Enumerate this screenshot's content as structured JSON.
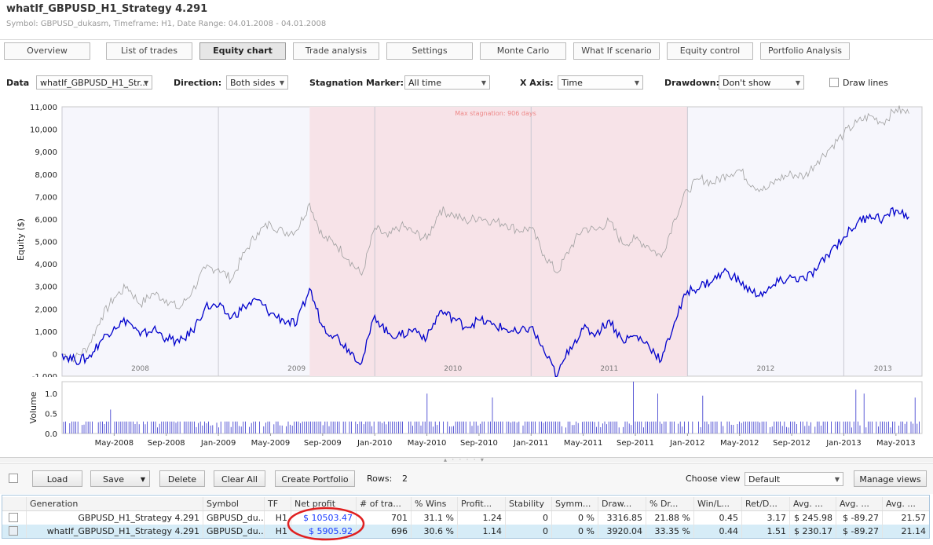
{
  "window": {
    "title": "whatIf_GBPUSD_H1_Strategy 4.291",
    "subtitle": "Symbol: GBPUSD_dukasm, Timeframe: H1, Date Range: 04.01.2008 - 04.01.2008"
  },
  "tabs": [
    "Overview",
    "List of trades",
    "Equity chart",
    "Trade analysis",
    "Settings",
    "Monte Carlo",
    "What If scenario",
    "Equity control",
    "Portfolio Analysis"
  ],
  "active_tab": "Equity chart",
  "controls": {
    "data_label": "Data",
    "data_value": "whatIf_GBPUSD_H1_Str...",
    "direction_label": "Direction:",
    "direction_value": "Both sides",
    "stagnation_label": "Stagnation Marker:",
    "stagnation_value": "All time",
    "xaxis_label": "X Axis:",
    "xaxis_value": "Time",
    "drawdown_label": "Drawdown:",
    "drawdown_value": "Don't show",
    "draw_lines_label": "Draw lines",
    "draw_lines_checked": false
  },
  "chart_data": [
    {
      "type": "line",
      "ylabel": "Equity ($)",
      "ylim": [
        -1000,
        11000
      ],
      "yticks": [
        "-1,000",
        "0",
        "1,000",
        "2,000",
        "3,000",
        "4,000",
        "5,000",
        "6,000",
        "7,000",
        "8,000",
        "9,000",
        "10,000",
        "11,000"
      ],
      "year_labels": [
        "2008",
        "2009",
        "2010",
        "2011",
        "2012",
        "2013"
      ],
      "stagnation_label": "Max stagnation: 906 days",
      "stagnation_range": [
        "Aug-2009",
        "Jan-2012"
      ],
      "series": [
        {
          "name": "GBPUSD_H1_Strategy 4.291",
          "color": "#a0a0a0",
          "points": [
            [
              "Jan-2008",
              0
            ],
            [
              "Feb-2008",
              -200
            ],
            [
              "Mar-2008",
              300
            ],
            [
              "Apr-2008",
              1600
            ],
            [
              "May-2008",
              2500
            ],
            [
              "Jun-2008",
              3000
            ],
            [
              "Jul-2008",
              2200
            ],
            [
              "Aug-2008",
              2700
            ],
            [
              "Sep-2008",
              2400
            ],
            [
              "Oct-2008",
              2000
            ],
            [
              "Nov-2008",
              2800
            ],
            [
              "Dec-2008",
              3800
            ],
            [
              "Jan-2009",
              3800
            ],
            [
              "Feb-2009",
              3300
            ],
            [
              "Mar-2009",
              4500
            ],
            [
              "Apr-2009",
              5400
            ],
            [
              "May-2009",
              5800
            ],
            [
              "Jun-2009",
              5400
            ],
            [
              "Jul-2009",
              5500
            ],
            [
              "Aug-2009",
              6700
            ],
            [
              "Sep-2009",
              5200
            ],
            [
              "Oct-2009",
              4900
            ],
            [
              "Nov-2009",
              4200
            ],
            [
              "Dec-2009",
              3500
            ],
            [
              "Jan-2010",
              5600
            ],
            [
              "Feb-2010",
              5200
            ],
            [
              "Mar-2010",
              5700
            ],
            [
              "Apr-2010",
              5400
            ],
            [
              "May-2010",
              5100
            ],
            [
              "Jun-2010",
              6400
            ],
            [
              "Jul-2010",
              6200
            ],
            [
              "Aug-2010",
              5900
            ],
            [
              "Sep-2010",
              6100
            ],
            [
              "Oct-2010",
              5900
            ],
            [
              "Nov-2010",
              5800
            ],
            [
              "Dec-2010",
              5500
            ],
            [
              "Jan-2011",
              5600
            ],
            [
              "Feb-2011",
              4400
            ],
            [
              "Mar-2011",
              3600
            ],
            [
              "Apr-2011",
              4700
            ],
            [
              "May-2011",
              5600
            ],
            [
              "Jun-2011",
              5500
            ],
            [
              "Jul-2011",
              5900
            ],
            [
              "Aug-2011",
              4900
            ],
            [
              "Sep-2011",
              5100
            ],
            [
              "Oct-2011",
              4800
            ],
            [
              "Nov-2011",
              4300
            ],
            [
              "Dec-2011",
              6000
            ],
            [
              "Jan-2012",
              7300
            ],
            [
              "Feb-2012",
              7800
            ],
            [
              "Mar-2012",
              7600
            ],
            [
              "Apr-2012",
              8000
            ],
            [
              "May-2012",
              8200
            ],
            [
              "Jun-2012",
              7500
            ],
            [
              "Jul-2012",
              7300
            ],
            [
              "Aug-2012",
              7800
            ],
            [
              "Sep-2012",
              8000
            ],
            [
              "Oct-2012",
              7900
            ],
            [
              "Nov-2012",
              8600
            ],
            [
              "Dec-2012",
              9200
            ],
            [
              "Jan-2013",
              9800
            ],
            [
              "Feb-2013",
              10300
            ],
            [
              "Mar-2013",
              10600
            ],
            [
              "Apr-2013",
              10300
            ],
            [
              "May-2013",
              10900
            ],
            [
              "Jun-2013",
              10700
            ]
          ]
        },
        {
          "name": "whatIf_GBPUSD_H1_Strategy 4.291",
          "color": "#0000cc",
          "points": [
            [
              "Jan-2008",
              0
            ],
            [
              "Feb-2008",
              -300
            ],
            [
              "Mar-2008",
              -200
            ],
            [
              "Apr-2008",
              600
            ],
            [
              "May-2008",
              1200
            ],
            [
              "Jun-2008",
              1500
            ],
            [
              "Jul-2008",
              800
            ],
            [
              "Aug-2008",
              1100
            ],
            [
              "Sep-2008",
              700
            ],
            [
              "Oct-2008",
              500
            ],
            [
              "Nov-2008",
              1000
            ],
            [
              "Dec-2008",
              2100
            ],
            [
              "Jan-2009",
              2100
            ],
            [
              "Feb-2009",
              1600
            ],
            [
              "Mar-2009",
              2100
            ],
            [
              "Apr-2009",
              2400
            ],
            [
              "May-2009",
              1800
            ],
            [
              "Jun-2009",
              1500
            ],
            [
              "Jul-2009",
              1300
            ],
            [
              "Aug-2009",
              2900
            ],
            [
              "Sep-2009",
              1200
            ],
            [
              "Oct-2009",
              800
            ],
            [
              "Nov-2009",
              200
            ],
            [
              "Dec-2009",
              -400
            ],
            [
              "Jan-2010",
              1700
            ],
            [
              "Feb-2010",
              900
            ],
            [
              "Mar-2010",
              800
            ],
            [
              "Apr-2010",
              1100
            ],
            [
              "May-2010",
              700
            ],
            [
              "Jun-2010",
              1900
            ],
            [
              "Jul-2010",
              1600
            ],
            [
              "Aug-2010",
              1200
            ],
            [
              "Sep-2010",
              1500
            ],
            [
              "Oct-2010",
              1300
            ],
            [
              "Nov-2010",
              1100
            ],
            [
              "Dec-2010",
              900
            ],
            [
              "Jan-2011",
              1200
            ],
            [
              "Feb-2011",
              100
            ],
            [
              "Mar-2011",
              -1000
            ],
            [
              "Apr-2011",
              300
            ],
            [
              "May-2011",
              1100
            ],
            [
              "Jun-2011",
              900
            ],
            [
              "Jul-2011",
              1500
            ],
            [
              "Aug-2011",
              600
            ],
            [
              "Sep-2011",
              800
            ],
            [
              "Oct-2011",
              400
            ],
            [
              "Nov-2011",
              -300
            ],
            [
              "Dec-2011",
              1400
            ],
            [
              "Jan-2012",
              2800
            ],
            [
              "Feb-2012",
              3000
            ],
            [
              "Mar-2012",
              3300
            ],
            [
              "Apr-2012",
              3700
            ],
            [
              "May-2012",
              3200
            ],
            [
              "Jun-2012",
              2700
            ],
            [
              "Jul-2012",
              2700
            ],
            [
              "Aug-2012",
              3200
            ],
            [
              "Sep-2012",
              3400
            ],
            [
              "Oct-2012",
              3300
            ],
            [
              "Nov-2012",
              3800
            ],
            [
              "Dec-2012",
              4600
            ],
            [
              "Jan-2013",
              5200
            ],
            [
              "Feb-2013",
              5800
            ],
            [
              "Mar-2013",
              6200
            ],
            [
              "Apr-2013",
              6000
            ],
            [
              "May-2013",
              6400
            ],
            [
              "Jun-2013",
              6100
            ]
          ]
        }
      ]
    },
    {
      "type": "bar",
      "ylabel": "Volume",
      "ylim": [
        0,
        1.3
      ],
      "yticks": [
        "0.0",
        "0.5",
        "1.0"
      ],
      "xticks": [
        "May-2008",
        "Sep-2008",
        "Jan-2009",
        "May-2009",
        "Sep-2009",
        "Jan-2010",
        "May-2010",
        "Sep-2010",
        "Jan-2011",
        "May-2011",
        "Sep-2011",
        "Jan-2012",
        "May-2012",
        "Sep-2012",
        "Jan-2013",
        "May-2013"
      ],
      "base_volume": 0.3,
      "peak_volumes": [
        0.6,
        1.0,
        0.9,
        1.3,
        1.0,
        0.95,
        1.1,
        1.0,
        0.9,
        0.75,
        1.0
      ],
      "color": "#3333cc"
    }
  ],
  "toolbar": {
    "load": "Load",
    "save": "Save",
    "delete": "Delete",
    "clear_all": "Clear All",
    "create_portfolio": "Create Portfolio",
    "rows_label": "Rows:",
    "rows_value": "2",
    "choose_view_label": "Choose view",
    "view_value": "Default",
    "manage_views": "Manage views"
  },
  "table": {
    "columns": [
      "Generation",
      "Symbol",
      "TF",
      "Net profit",
      "# of tra...",
      "% Wins",
      "Profit...",
      "Stability",
      "Symm...",
      "Draw...",
      "% Dr...",
      "Win/L...",
      "Ret/D...",
      "Avg. ...",
      "Avg. ...",
      "Avg. ..."
    ],
    "rows": [
      [
        "GBPUSD_H1_Strategy 4.291",
        "GBPUSD_du...",
        "H1",
        "$ 10503.47",
        "701",
        "31.1 %",
        "1.24",
        "0",
        "0 %",
        "3316.85",
        "21.88 %",
        "0.45",
        "3.17",
        "$ 245.98",
        "$ -89.27",
        "21.57"
      ],
      [
        "whatIf_GBPUSD_H1_Strategy 4.291",
        "GBPUSD_du...",
        "H1",
        "$ 5905.92",
        "696",
        "30.6 %",
        "1.14",
        "0",
        "0 %",
        "3920.04",
        "33.35 %",
        "0.44",
        "1.51",
        "$ 230.17",
        "$ -89.27",
        "21.14"
      ]
    ]
  },
  "colors": {
    "stagnation_fill": "#f7e3e8",
    "plot_bg": "#f6f6fc",
    "selected_row": "#d6ecf7",
    "highlight_circle": "#e02020",
    "net_profit_text": "#1a3cff"
  }
}
